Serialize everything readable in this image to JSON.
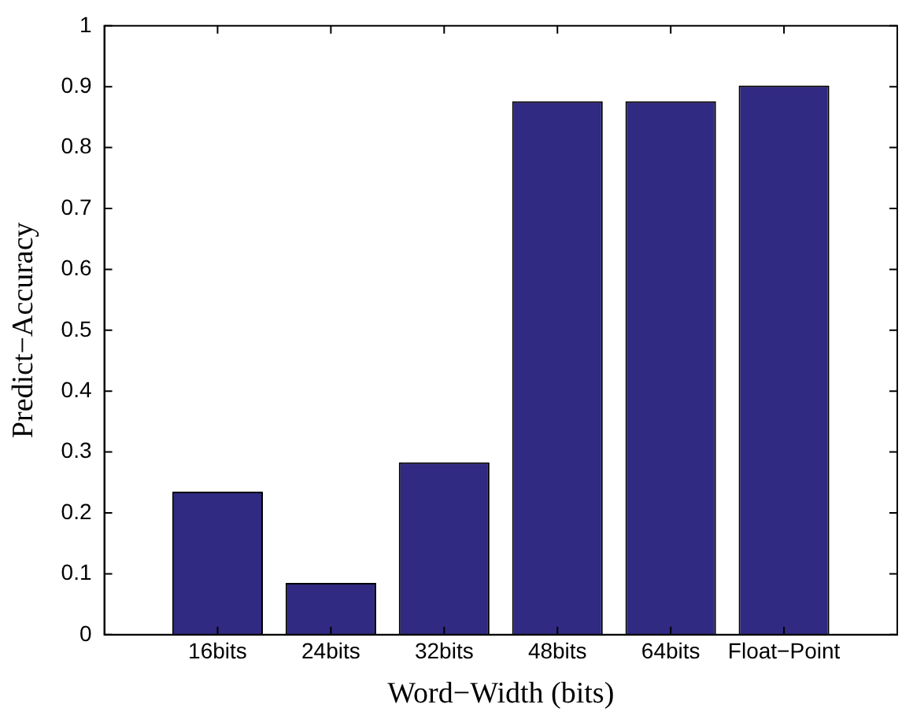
{
  "chart_data": {
    "type": "bar",
    "xlabel": "Word−Width (bits)",
    "ylabel": "Predict−Accuracy",
    "categories": [
      "16bits",
      "24bits",
      "32bits",
      "48bits",
      "64bits",
      "Float−Point"
    ],
    "values": [
      0.235,
      0.085,
      0.283,
      0.876,
      0.876,
      0.902
    ],
    "color": "#312a82",
    "ylim": [
      0,
      1
    ],
    "yticks": [
      0,
      0.1,
      0.2,
      0.3,
      0.4,
      0.5,
      0.6,
      0.7,
      0.8,
      0.9,
      1
    ],
    "grid": false,
    "legend": false
  }
}
